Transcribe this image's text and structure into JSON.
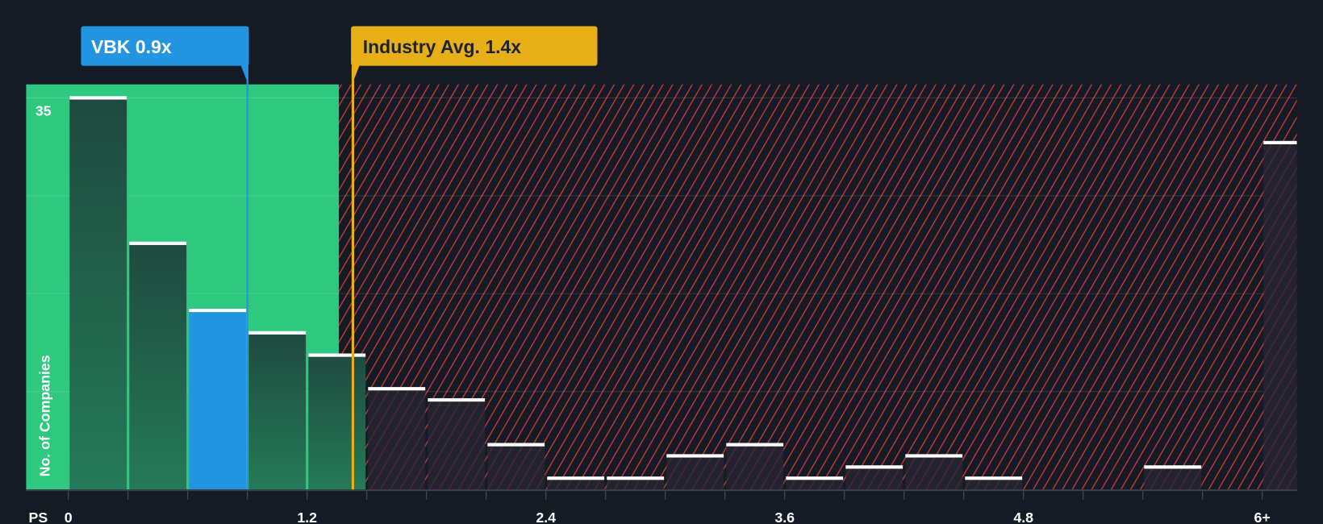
{
  "chart_data": {
    "type": "bar",
    "title": "",
    "xlabel": "PS",
    "ylabel": "No. of Companies",
    "bin_width": 0.3,
    "bins_start": [
      0,
      0.3,
      0.6,
      0.9,
      1.2,
      1.5,
      1.8,
      2.1,
      2.4,
      2.7,
      3.0,
      3.3,
      3.6,
      3.9,
      4.2,
      4.5,
      4.8,
      5.1,
      5.4,
      5.7,
      6.0
    ],
    "values": [
      35,
      22,
      16,
      14,
      12,
      9,
      8,
      4,
      1,
      1,
      3,
      4,
      1,
      2,
      3,
      1,
      0,
      0,
      2,
      0,
      31
    ],
    "highlight_bin": 2,
    "x_ticks": [
      {
        "v": 0,
        "label": "0"
      },
      {
        "v": 1.2,
        "label": "1.2"
      },
      {
        "v": 2.4,
        "label": "2.4"
      },
      {
        "v": 3.6,
        "label": "3.6"
      },
      {
        "v": 4.8,
        "label": "4.8"
      },
      {
        "v": 6.0,
        "label": "6+"
      }
    ],
    "y_max_label": "35",
    "ylim": [
      0,
      35
    ],
    "fair_region_end": 1.36,
    "company": {
      "label": "VBK 0.9x",
      "value": 0.9
    },
    "industry": {
      "label": "Industry Avg. 1.4x",
      "value": 1.43
    },
    "colors": {
      "background": "#151b24",
      "fair": "#2ec97f",
      "company": "#2394e0",
      "industry": "#e8b017",
      "overvalued": "#d63c3c"
    }
  }
}
